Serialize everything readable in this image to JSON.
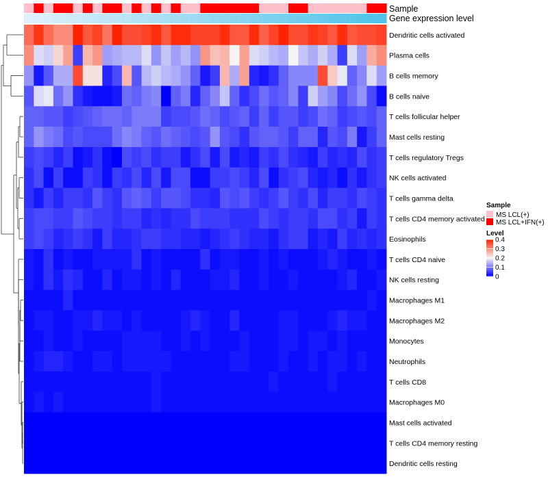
{
  "chart_data": {
    "type": "heatmap",
    "title": "",
    "annotations": {
      "sample_label": "Sample",
      "gene_expression_label": "Gene expression level",
      "sample_groups": [
        "MS LCL(+)",
        "MS LCL+IFN(+)"
      ],
      "sample_assignment": [
        0,
        1,
        0,
        1,
        1,
        0,
        1,
        0,
        1,
        1,
        0,
        1,
        0,
        1,
        0,
        1,
        0,
        0,
        1,
        1,
        1,
        1,
        1,
        1,
        0,
        0,
        0,
        1,
        1,
        0,
        0,
        0,
        0,
        0,
        0,
        1,
        1
      ],
      "gene_expression_range": [
        "low",
        "high"
      ],
      "colors": {
        "MS LCL(+)": "#ffc0cb",
        "MS LCL+IFN(+)": "#ff0000",
        "expr_low": "#e0f0fa",
        "expr_high": "#4fc3ea"
      }
    },
    "rows": [
      "Dendritic cells activated",
      "Plasma cells",
      "B cells memory",
      "B cells naive",
      "T cells follicular helper",
      "Mast cells resting",
      "T cells regulatory  Tregs",
      "NK cells activated",
      "T cells gamma delta",
      "T cells CD4 memory activated",
      "Eosinophils",
      "T cells CD4 naive",
      "NK cells resting",
      "Macrophages M1",
      "Macrophages M2",
      "Monocytes",
      "Neutrophils",
      "T cells CD8",
      "Macrophages M0",
      "Mast cells activated",
      "T cells CD4 memory resting",
      "Dendritic cells resting"
    ],
    "n_columns": 37,
    "values": [
      [
        0.33,
        0.38,
        0.33,
        0.3,
        0.3,
        0.4,
        0.35,
        0.37,
        0.32,
        0.4,
        0.36,
        0.36,
        0.37,
        0.39,
        0.35,
        0.39,
        0.39,
        0.37,
        0.37,
        0.37,
        0.39,
        0.35,
        0.35,
        0.39,
        0.34,
        0.37,
        0.4,
        0.36,
        0.36,
        0.38,
        0.37,
        0.35,
        0.39,
        0.35,
        0.36,
        0.36,
        0.37
      ],
      [
        0.3,
        0.18,
        0.17,
        0.23,
        0.28,
        0.05,
        0.26,
        0.29,
        0.13,
        0.14,
        0.15,
        0.15,
        0.18,
        0.12,
        0.16,
        0.13,
        0.15,
        0.12,
        0.29,
        0.25,
        0.26,
        0.2,
        0.28,
        0.18,
        0.17,
        0.15,
        0.14,
        0.2,
        0.16,
        0.14,
        0.17,
        0.14,
        0.05,
        0.18,
        0.13,
        0.27,
        0.3
      ],
      [
        0.12,
        0.02,
        0.07,
        0.14,
        0.14,
        0.36,
        0.22,
        0.22,
        0.03,
        0.06,
        0.26,
        0.07,
        0.15,
        0.17,
        0.15,
        0.14,
        0.12,
        0.08,
        0.02,
        0.05,
        0.26,
        0.14,
        0.28,
        0.03,
        0.02,
        0.04,
        0.08,
        0.11,
        0.11,
        0.11,
        0.36,
        0.24,
        0.19,
        0.08,
        0.11,
        0.18,
        0.13
      ],
      [
        0.07,
        0.18,
        0.19,
        0.09,
        0.12,
        0.04,
        0.02,
        0.01,
        0.01,
        0.02,
        0.09,
        0.08,
        0.1,
        0.11,
        0.0,
        0.08,
        0.1,
        0.03,
        0.08,
        0.11,
        0.16,
        0.08,
        0.04,
        0.06,
        0.09,
        0.07,
        0.08,
        0.11,
        0.05,
        0.17,
        0.13,
        0.11,
        0.06,
        0.09,
        0.12,
        0.06,
        0.01
      ],
      [
        0.08,
        0.08,
        0.07,
        0.07,
        0.05,
        0.06,
        0.07,
        0.08,
        0.09,
        0.09,
        0.08,
        0.1,
        0.1,
        0.1,
        0.05,
        0.06,
        0.06,
        0.07,
        0.09,
        0.08,
        0.06,
        0.07,
        0.08,
        0.05,
        0.08,
        0.05,
        0.07,
        0.07,
        0.05,
        0.06,
        0.09,
        0.08,
        0.05,
        0.06,
        0.07,
        0.06,
        0.08
      ],
      [
        0.08,
        0.12,
        0.1,
        0.09,
        0.06,
        0.07,
        0.06,
        0.06,
        0.06,
        0.09,
        0.11,
        0.1,
        0.08,
        0.07,
        0.09,
        0.08,
        0.07,
        0.06,
        0.07,
        0.12,
        0.07,
        0.06,
        0.04,
        0.07,
        0.08,
        0.08,
        0.07,
        0.05,
        0.08,
        0.08,
        0.03,
        0.07,
        0.06,
        0.1,
        0.02,
        0.05,
        0.08
      ],
      [
        0.05,
        0.06,
        0.05,
        0.03,
        0.05,
        0.01,
        0.02,
        0.04,
        0.01,
        0.0,
        0.06,
        0.05,
        0.06,
        0.04,
        0.05,
        0.05,
        0.02,
        0.04,
        0.06,
        0.02,
        0.06,
        0.02,
        0.03,
        0.02,
        0.05,
        0.04,
        0.06,
        0.04,
        0.03,
        0.02,
        0.05,
        0.03,
        0.04,
        0.03,
        0.06,
        0.04,
        0.05
      ],
      [
        0.04,
        0.06,
        0.01,
        0.05,
        0.01,
        0.01,
        0.05,
        0.04,
        0.01,
        0.05,
        0.04,
        0.06,
        0.03,
        0.06,
        0.02,
        0.06,
        0.06,
        0.01,
        0.01,
        0.05,
        0.05,
        0.06,
        0.05,
        0.03,
        0.06,
        0.01,
        0.04,
        0.05,
        0.06,
        0.03,
        0.02,
        0.03,
        0.01,
        0.04,
        0.02,
        0.04,
        0.05
      ],
      [
        0.04,
        0.02,
        0.05,
        0.03,
        0.05,
        0.05,
        0.04,
        0.07,
        0.05,
        0.04,
        0.07,
        0.08,
        0.07,
        0.05,
        0.07,
        0.07,
        0.06,
        0.04,
        0.04,
        0.03,
        0.07,
        0.06,
        0.07,
        0.05,
        0.04,
        0.05,
        0.07,
        0.05,
        0.04,
        0.06,
        0.03,
        0.05,
        0.05,
        0.04,
        0.06,
        0.05,
        0.04
      ],
      [
        0.05,
        0.06,
        0.06,
        0.05,
        0.05,
        0.07,
        0.06,
        0.05,
        0.05,
        0.04,
        0.05,
        0.05,
        0.03,
        0.04,
        0.03,
        0.04,
        0.04,
        0.06,
        0.05,
        0.05,
        0.05,
        0.04,
        0.04,
        0.04,
        0.06,
        0.05,
        0.04,
        0.05,
        0.05,
        0.04,
        0.06,
        0.06,
        0.04,
        0.05,
        0.02,
        0.05,
        0.04
      ],
      [
        0.05,
        0.06,
        0.05,
        0.03,
        0.04,
        0.05,
        0.04,
        0.02,
        0.05,
        0.03,
        0.03,
        0.04,
        0.05,
        0.05,
        0.04,
        0.04,
        0.03,
        0.03,
        0.02,
        0.03,
        0.04,
        0.05,
        0.04,
        0.03,
        0.03,
        0.02,
        0.04,
        0.05,
        0.05,
        0.02,
        0.03,
        0.02,
        0.05,
        0.03,
        0.04,
        0.03,
        0.04
      ],
      [
        0.02,
        0.01,
        0.04,
        0.01,
        0.02,
        0.01,
        0.01,
        0.02,
        0.02,
        0.02,
        0.02,
        0.04,
        0.01,
        0.02,
        0.01,
        0.01,
        0.01,
        0.01,
        0.04,
        0.01,
        0.02,
        0.02,
        0.01,
        0.01,
        0.02,
        0.01,
        0.02,
        0.01,
        0.01,
        0.01,
        0.02,
        0.03,
        0.02,
        0.01,
        0.01,
        0.02,
        0.01
      ],
      [
        0.02,
        0.01,
        0.04,
        0.02,
        0.04,
        0.03,
        0.01,
        0.01,
        0.03,
        0.01,
        0.02,
        0.02,
        0.01,
        0.02,
        0.01,
        0.03,
        0.01,
        0.01,
        0.01,
        0.02,
        0.02,
        0.03,
        0.01,
        0.01,
        0.02,
        0.01,
        0.01,
        0.02,
        0.01,
        0.01,
        0.01,
        0.01,
        0.02,
        0.03,
        0.01,
        0.01,
        0.02
      ],
      [
        0.01,
        0.01,
        0.01,
        0.01,
        0.03,
        0.01,
        0.01,
        0.01,
        0.01,
        0.01,
        0.01,
        0.01,
        0.01,
        0.01,
        0.01,
        0.01,
        0.01,
        0.01,
        0.01,
        0.01,
        0.01,
        0.01,
        0.01,
        0.01,
        0.01,
        0.01,
        0.01,
        0.01,
        0.01,
        0.01,
        0.01,
        0.01,
        0.01,
        0.01,
        0.01,
        0.02,
        0.01
      ],
      [
        0.01,
        0.02,
        0.02,
        0.01,
        0.01,
        0.02,
        0.02,
        0.03,
        0.02,
        0.02,
        0.01,
        0.02,
        0.01,
        0.01,
        0.01,
        0.01,
        0.02,
        0.03,
        0.02,
        0.01,
        0.01,
        0.03,
        0.01,
        0.01,
        0.01,
        0.01,
        0.02,
        0.02,
        0.01,
        0.01,
        0.01,
        0.02,
        0.03,
        0.02,
        0.02,
        0.01,
        0.01
      ],
      [
        0.01,
        0.01,
        0.02,
        0.01,
        0.01,
        0.02,
        0.01,
        0.01,
        0.01,
        0.01,
        0.02,
        0.02,
        0.02,
        0.02,
        0.01,
        0.01,
        0.02,
        0.01,
        0.02,
        0.01,
        0.01,
        0.01,
        0.02,
        0.01,
        0.01,
        0.01,
        0.02,
        0.02,
        0.01,
        0.02,
        0.02,
        0.01,
        0.02,
        0.01,
        0.01,
        0.01,
        0.01
      ],
      [
        0.01,
        0.02,
        0.03,
        0.03,
        0.02,
        0.01,
        0.01,
        0.02,
        0.02,
        0.01,
        0.02,
        0.02,
        0.02,
        0.02,
        0.02,
        0.01,
        0.01,
        0.01,
        0.01,
        0.01,
        0.01,
        0.02,
        0.02,
        0.01,
        0.01,
        0.01,
        0.02,
        0.01,
        0.01,
        0.02,
        0.01,
        0.02,
        0.02,
        0.01,
        0.02,
        0.01,
        0.01
      ],
      [
        0.01,
        0.01,
        0.01,
        0.01,
        0.01,
        0.01,
        0.01,
        0.01,
        0.01,
        0.01,
        0.01,
        0.01,
        0.01,
        0.02,
        0.01,
        0.01,
        0.01,
        0.01,
        0.01,
        0.01,
        0.01,
        0.01,
        0.01,
        0.01,
        0.01,
        0.02,
        0.01,
        0.01,
        0.01,
        0.01,
        0.01,
        0.02,
        0.01,
        0.01,
        0.01,
        0.01,
        0.01
      ],
      [
        0.01,
        0.02,
        0.01,
        0.02,
        0.01,
        0.01,
        0.01,
        0.01,
        0.01,
        0.01,
        0.01,
        0.01,
        0.01,
        0.02,
        0.01,
        0.01,
        0.01,
        0.01,
        0.01,
        0.01,
        0.01,
        0.01,
        0.01,
        0.01,
        0.01,
        0.01,
        0.01,
        0.01,
        0.01,
        0.01,
        0.01,
        0.01,
        0.01,
        0.01,
        0.01,
        0.01,
        0.01
      ],
      [
        0.0,
        0.0,
        0.0,
        0.0,
        0.0,
        0.0,
        0.0,
        0.0,
        0.0,
        0.0,
        0.0,
        0.0,
        0.0,
        0.0,
        0.0,
        0.0,
        0.0,
        0.0,
        0.0,
        0.0,
        0.0,
        0.0,
        0.0,
        0.0,
        0.0,
        0.0,
        0.0,
        0.0,
        0.0,
        0.0,
        0.0,
        0.0,
        0.0,
        0.0,
        0.0,
        0.0,
        0.0
      ],
      [
        0.0,
        0.0,
        0.0,
        0.0,
        0.0,
        0.0,
        0.0,
        0.0,
        0.0,
        0.0,
        0.0,
        0.0,
        0.0,
        0.0,
        0.0,
        0.0,
        0.0,
        0.0,
        0.0,
        0.0,
        0.0,
        0.0,
        0.0,
        0.0,
        0.0,
        0.0,
        0.0,
        0.0,
        0.0,
        0.0,
        0.0,
        0.0,
        0.0,
        0.0,
        0.0,
        0.0,
        0.0
      ],
      [
        0.0,
        0.0,
        0.0,
        0.0,
        0.0,
        0.0,
        0.0,
        0.0,
        0.0,
        0.0,
        0.0,
        0.0,
        0.0,
        0.0,
        0.0,
        0.0,
        0.0,
        0.0,
        0.0,
        0.0,
        0.0,
        0.0,
        0.0,
        0.0,
        0.0,
        0.0,
        0.0,
        0.0,
        0.0,
        0.0,
        0.0,
        0.0,
        0.0,
        0.0,
        0.0,
        0.0,
        0.0
      ]
    ],
    "legend": {
      "sample_title": "Sample",
      "sample_entries": [
        "MS LCL(+)",
        "MS LCL+IFN(+)"
      ],
      "level_title": "Level",
      "level_ticks": [
        "0.4",
        "0.3",
        "0.2",
        "0.1",
        "0"
      ],
      "level_tick_values": [
        0.4,
        0.3,
        0.2,
        0.1,
        0.0
      ],
      "level_range": [
        0,
        0.4
      ],
      "colors": {
        "low": "#0000ff",
        "mid": "#f5f5f5",
        "high": "#ff2200"
      },
      "placement": "right"
    },
    "dendrogram": "rows"
  }
}
